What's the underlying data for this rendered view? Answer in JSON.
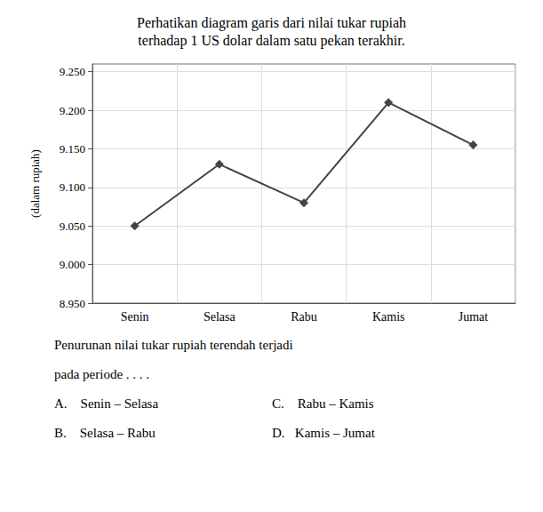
{
  "chart_data": {
    "type": "line",
    "title": "Perhatikan diagram garis dari nilai tukar rupiah\nterhadap 1 US dolar dalam satu pekan terakhir.",
    "categories": [
      "Senin",
      "Selasa",
      "Rabu",
      "Kamis",
      "Jumat"
    ],
    "values": [
      9050,
      9130,
      9080,
      9210,
      9155
    ],
    "y_label": "(dalam rupiah)",
    "ylim": [
      8950,
      9260
    ],
    "yticks": [
      {
        "value": 8950,
        "label": "8.950"
      },
      {
        "value": 9000,
        "label": "9.000"
      },
      {
        "value": 9050,
        "label": "9.050"
      },
      {
        "value": 9100,
        "label": "9.100"
      },
      {
        "value": 9150,
        "label": "9.150"
      },
      {
        "value": 9200,
        "label": "9.200"
      },
      {
        "value": 9250,
        "label": "9.250"
      }
    ],
    "color": "#444444",
    "marker": "diamond",
    "grid": true,
    "annotations": [
      "Penurunan nilai tukar rupiah terendah terjadi",
      "pada periode . . . .",
      "A.    Senin – Selasa",
      "C.    Rabu – Kamis",
      "B.    Selasa – Rabu",
      "D.   Kamis – Jumat"
    ]
  }
}
